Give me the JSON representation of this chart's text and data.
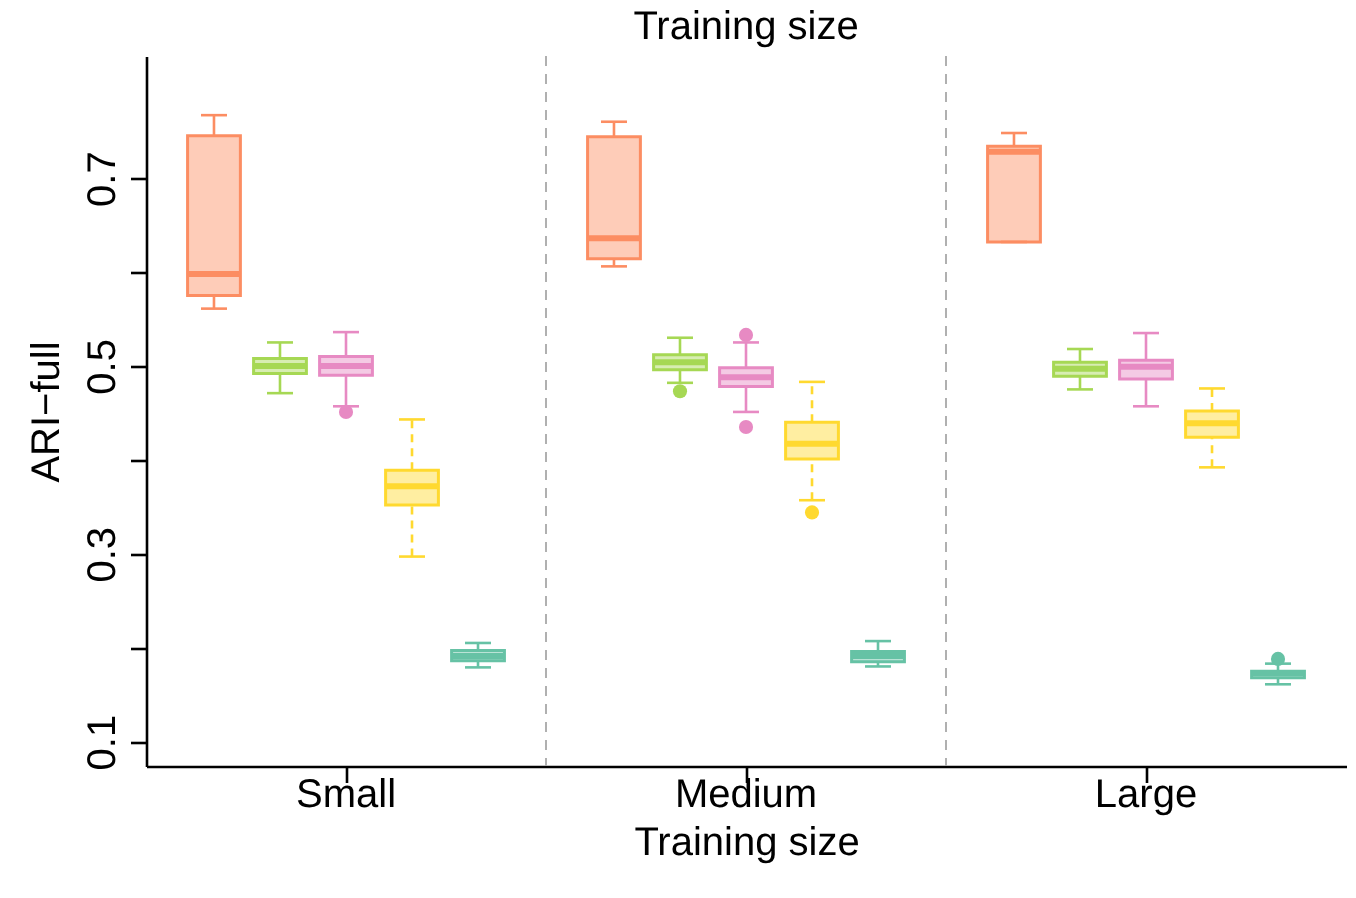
{
  "chart_data": {
    "type": "box",
    "title": "Training size",
    "xlabel": "Training size",
    "ylabel": "ARI−full",
    "categories": [
      "Small",
      "Medium",
      "Large"
    ],
    "ylim": [
      0.074,
      0.83
    ],
    "yticks": [
      0.1,
      {
        "value": 0.2,
        "label": null
      },
      0.3,
      {
        "value": 0.4,
        "label": null
      },
      0.5,
      {
        "value": 0.6,
        "label": null
      },
      0.7
    ],
    "grid": "x",
    "legend": false,
    "series": [
      {
        "color": "#fc8d62",
        "boxes": [
          {
            "low": 0.561,
            "q1": 0.575,
            "median": 0.598,
            "q3": 0.745,
            "high": 0.767
          },
          {
            "low": 0.606,
            "q1": 0.614,
            "median": 0.636,
            "q3": 0.744,
            "high": 0.76
          },
          {
            "low": 0.632,
            "q1": 0.632,
            "median": 0.728,
            "q3": 0.734,
            "high": 0.748
          }
        ]
      },
      {
        "color": "#a6d854",
        "boxes": [
          {
            "low": 0.471,
            "q1": 0.492,
            "median": 0.5,
            "q3": 0.508,
            "high": 0.525
          },
          {
            "low": 0.482,
            "q1": 0.496,
            "median": 0.504,
            "q3": 0.512,
            "high": 0.53,
            "outliers": [
              0.473
            ]
          },
          {
            "low": 0.475,
            "q1": 0.489,
            "median": 0.497,
            "q3": 0.504,
            "high": 0.518
          }
        ]
      },
      {
        "color": "#e78ac3",
        "boxes": [
          {
            "low": 0.457,
            "q1": 0.49,
            "median": 0.5,
            "q3": 0.51,
            "high": 0.536,
            "outliers": [
              0.451
            ]
          },
          {
            "low": 0.451,
            "q1": 0.478,
            "median": 0.488,
            "q3": 0.498,
            "high": 0.525,
            "outliers": [
              0.533,
              0.435
            ]
          },
          {
            "low": 0.457,
            "q1": 0.486,
            "median": 0.499,
            "q3": 0.506,
            "high": 0.535
          }
        ]
      },
      {
        "color": "#ffd92f",
        "line_style": "dashed",
        "boxes": [
          {
            "low": 0.297,
            "q1": 0.352,
            "median": 0.372,
            "q3": 0.389,
            "high": 0.443
          },
          {
            "low": 0.357,
            "q1": 0.401,
            "median": 0.417,
            "q3": 0.44,
            "high": 0.483,
            "outliers": [
              0.344
            ]
          },
          {
            "low": 0.392,
            "q1": 0.424,
            "median": 0.439,
            "q3": 0.452,
            "high": 0.476
          }
        ]
      },
      {
        "color": "#66c2a5",
        "boxes": [
          {
            "low": 0.179,
            "q1": 0.186,
            "median": 0.191,
            "q3": 0.197,
            "high": 0.205
          },
          {
            "low": 0.18,
            "q1": 0.185,
            "median": 0.191,
            "q3": 0.196,
            "high": 0.207
          },
          {
            "low": 0.161,
            "q1": 0.168,
            "median": 0.173,
            "q3": 0.175,
            "high": 0.183,
            "outliers": [
              0.188
            ]
          }
        ]
      }
    ]
  }
}
